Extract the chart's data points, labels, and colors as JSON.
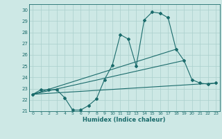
{
  "xlabel": "Humidex (Indice chaleur)",
  "ylabel": "",
  "bg_color": "#cde8e5",
  "line_color": "#1a6b6b",
  "grid_color": "#aacfcc",
  "xlim": [
    -0.5,
    23.5
  ],
  "ylim": [
    21.0,
    30.5
  ],
  "xticks": [
    0,
    1,
    2,
    3,
    4,
    5,
    6,
    7,
    8,
    9,
    10,
    11,
    12,
    13,
    14,
    15,
    16,
    17,
    18,
    19,
    20,
    21,
    22,
    23
  ],
  "yticks": [
    21,
    22,
    23,
    24,
    25,
    26,
    27,
    28,
    29,
    30
  ],
  "series1_x": [
    0,
    1,
    2,
    3,
    4,
    5,
    6,
    7,
    8,
    9,
    10,
    11,
    12,
    13,
    14,
    15,
    16,
    17,
    18,
    19,
    20,
    21,
    22,
    23
  ],
  "series1_y": [
    22.5,
    22.9,
    22.9,
    22.9,
    22.2,
    21.1,
    21.1,
    21.5,
    22.1,
    23.8,
    25.1,
    27.8,
    27.4,
    25.0,
    29.1,
    29.8,
    29.7,
    29.3,
    26.5,
    25.5,
    23.8,
    23.5,
    23.4,
    23.5
  ],
  "series2_x": [
    0,
    18
  ],
  "series2_y": [
    22.5,
    26.5
  ],
  "series3_x": [
    0,
    19
  ],
  "series3_y": [
    22.5,
    25.5
  ],
  "series4_x": [
    0,
    23
  ],
  "series4_y": [
    22.5,
    23.5
  ]
}
